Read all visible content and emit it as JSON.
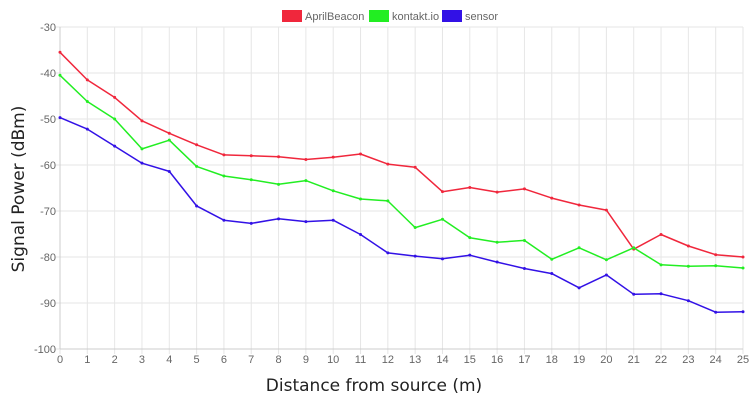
{
  "chart_data": {
    "type": "line",
    "xlabel": "Distance from source (m)",
    "ylabel": "Signal Power (dBm)",
    "ylim": [
      -100,
      -30
    ],
    "yticks": [
      -30,
      -40,
      -50,
      -60,
      -70,
      -80,
      -90,
      -100
    ],
    "x": [
      0,
      1,
      2,
      3,
      4,
      5,
      6,
      7,
      8,
      9,
      10,
      11,
      12,
      13,
      14,
      15,
      16,
      17,
      18,
      19,
      20,
      21,
      22,
      23,
      24,
      25
    ],
    "grid": true,
    "legend_position": "top-center",
    "series": [
      {
        "name": "AprilBeacon",
        "color": "#f0273c",
        "values": [
          -35.5,
          -41.5,
          -45.3,
          -50.4,
          -53.1,
          -55.6,
          -57.8,
          -58.0,
          -58.2,
          -58.8,
          -58.3,
          -57.6,
          -59.8,
          -60.5,
          -65.8,
          -64.9,
          -65.9,
          -65.2,
          -67.2,
          -68.7,
          -69.8,
          -78.3,
          -75.1,
          -77.6,
          -79.5,
          -80.0
        ]
      },
      {
        "name": "kontakt.io",
        "color": "#22ee22",
        "values": [
          -40.5,
          -46.2,
          -50.0,
          -56.5,
          -54.6,
          -60.3,
          -62.4,
          -63.2,
          -64.2,
          -63.4,
          -65.6,
          -67.4,
          -67.8,
          -73.6,
          -71.8,
          -75.8,
          -76.8,
          -76.4,
          -80.5,
          -78.0,
          -80.6,
          -78.0,
          -81.7,
          -82.0,
          -81.9,
          -82.4
        ]
      },
      {
        "name": "sensor",
        "color": "#3211e6",
        "values": [
          -49.7,
          -52.2,
          -55.9,
          -59.6,
          -61.4,
          -68.9,
          -72.0,
          -72.7,
          -71.7,
          -72.3,
          -72.0,
          -75.1,
          -79.1,
          -79.8,
          -80.4,
          -79.6,
          -81.1,
          -82.5,
          -83.6,
          -86.7,
          -83.9,
          -88.1,
          -88.0,
          -89.5,
          -92.0,
          -91.9
        ]
      }
    ]
  }
}
